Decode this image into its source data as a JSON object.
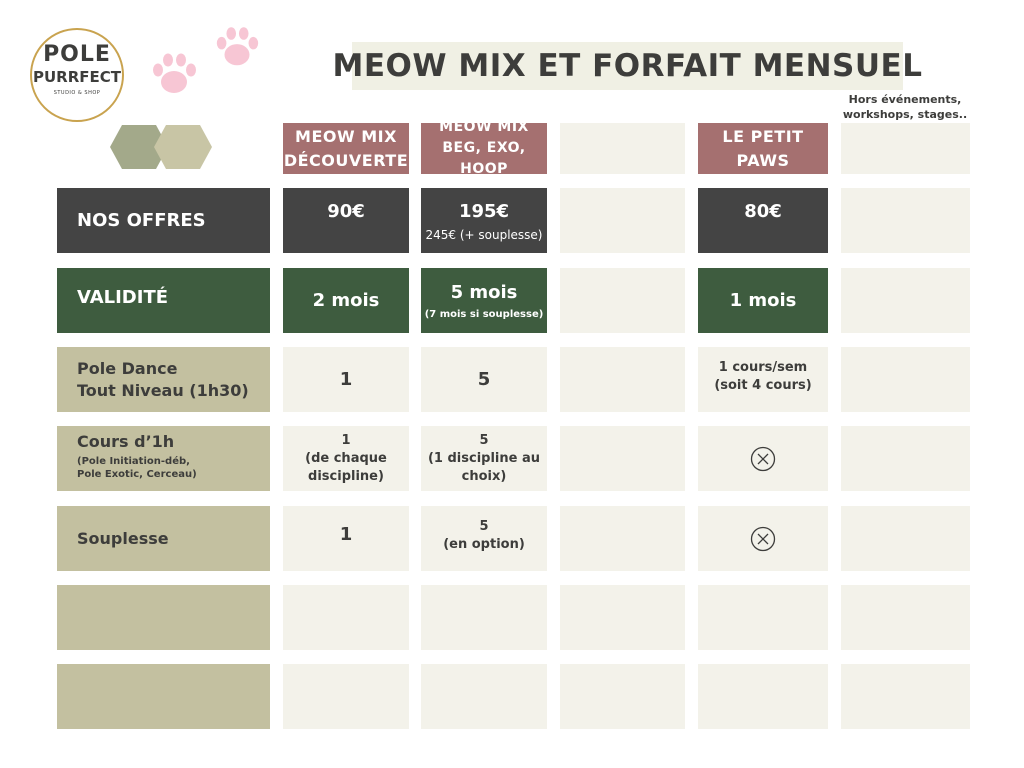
{
  "title": "MEOW MIX ET FORFAIT MENSUEL",
  "note": "Hors événements, workshops, stages..",
  "logo": {
    "line1": "POLE",
    "line2": "PURRFECT",
    "line3": "STUDIO & SHOP"
  },
  "columns": [
    {
      "line1": "MEOW MIX",
      "line2": "DÉCOUVERTE"
    },
    {
      "line1": "MEOW MIX",
      "line2": "BEG, EXO, HOOP"
    },
    {
      "line1": "",
      "line2": ""
    },
    {
      "line1": "LE PETIT",
      "line2": "PAWS"
    },
    {
      "line1": "",
      "line2": ""
    }
  ],
  "rows": {
    "offres": {
      "label": "NOS OFFRES",
      "cells": [
        {
          "main": "90€",
          "sub": ""
        },
        {
          "main": "195€",
          "sub": "245€ (+ souplesse)"
        },
        {
          "main": "",
          "sub": ""
        },
        {
          "main": "80€",
          "sub": ""
        },
        {
          "main": "",
          "sub": ""
        }
      ]
    },
    "validite": {
      "label": "VALIDITÉ",
      "cells": [
        {
          "main": "2 mois",
          "sub": ""
        },
        {
          "main": "5 mois",
          "sub": "(7 mois si souplesse)"
        },
        {
          "main": "",
          "sub": ""
        },
        {
          "main": "1 mois",
          "sub": ""
        },
        {
          "main": "",
          "sub": ""
        }
      ]
    },
    "pole": {
      "label1": "Pole Dance",
      "label2": "Tout Niveau (1h30)",
      "cells": [
        "1",
        "5",
        "",
        "",
        ""
      ],
      "paws_line1": "1 cours/sem",
      "paws_line2": "(soit 4 cours)"
    },
    "cours": {
      "label1": "Cours d’1h",
      "label2": "(Pole Initiation-déb,",
      "label3": "Pole Exotic, Cerceau)",
      "c1": [
        "1",
        "(de chaque",
        "discipline)"
      ],
      "c2": [
        "5",
        "(1 discipline au",
        "choix)"
      ],
      "paws_icon": "circle-x-icon"
    },
    "souplesse": {
      "label": "Souplesse",
      "c1": "1",
      "c2": [
        "5",
        "(en option)"
      ],
      "paws_icon": "circle-x-icon"
    }
  },
  "colors": {
    "rose": "#a57070",
    "dark": "#444444",
    "green": "#3e5c3f",
    "khaki": "#c3c0a0",
    "cream": "#f3f2ea",
    "paw": "#f7c6d4",
    "gold": "#c9a34f"
  }
}
